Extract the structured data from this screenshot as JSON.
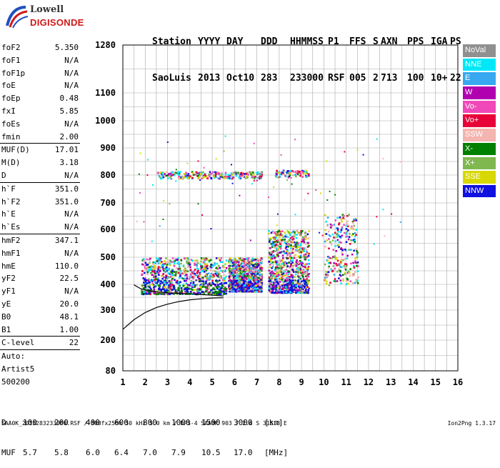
{
  "logo": {
    "line1": "Lowell",
    "line2": "DIGISONDE"
  },
  "header": {
    "row1": [
      "Station",
      "YYYY",
      "DAY",
      "DDD",
      "HHMMSS",
      "P1",
      "FFS",
      "S",
      "AXN",
      "PPS",
      "IGA",
      "PS"
    ],
    "row2": [
      "SaoLuis",
      "2013",
      "Oct10",
      "283",
      "233000",
      "RSF",
      "005",
      "2",
      "713",
      "100",
      "10+",
      "22"
    ]
  },
  "parameters": {
    "group1": [
      {
        "name": "foF2",
        "value": "5.350"
      },
      {
        "name": "foF1",
        "value": "N/A"
      },
      {
        "name": "foF1p",
        "value": "N/A"
      },
      {
        "name": "foE",
        "value": "N/A"
      },
      {
        "name": "foEp",
        "value": "0.48"
      },
      {
        "name": "fxI",
        "value": "5.85"
      },
      {
        "name": "foEs",
        "value": "N/A"
      },
      {
        "name": "fmin",
        "value": "2.00"
      }
    ],
    "group2": [
      {
        "name": "MUF(D)",
        "value": "17.01"
      },
      {
        "name": "M(D)",
        "value": "3.18"
      },
      {
        "name": "D",
        "value": "N/A"
      }
    ],
    "group3": [
      {
        "name": "h`F",
        "value": "351.0"
      },
      {
        "name": "h`F2",
        "value": "351.0"
      },
      {
        "name": "h`E",
        "value": "N/A"
      },
      {
        "name": "h`Es",
        "value": "N/A"
      }
    ],
    "group4": [
      {
        "name": "hmF2",
        "value": "347.1"
      },
      {
        "name": "hmF1",
        "value": "N/A"
      },
      {
        "name": "hmE",
        "value": "110.0"
      },
      {
        "name": "yF2",
        "value": "22.5"
      },
      {
        "name": "yF1",
        "value": "N/A"
      },
      {
        "name": "yE",
        "value": "20.0"
      },
      {
        "name": "B0",
        "value": "48.1"
      },
      {
        "name": "B1",
        "value": "1.00"
      }
    ],
    "clevel": {
      "name": "C-level",
      "value": "22"
    },
    "auto": [
      "Auto:",
      "Artist5",
      "500200"
    ]
  },
  "legend": [
    {
      "label": "NoVal",
      "color": "#909090"
    },
    {
      "label": "NNE",
      "color": "#00e8f8"
    },
    {
      "label": "E",
      "color": "#38a8f0"
    },
    {
      "label": "W",
      "color": "#b000b0"
    },
    {
      "label": "Vo-",
      "color": "#f048b8"
    },
    {
      "label": "Vo+",
      "color": "#e80038"
    },
    {
      "label": "SSW",
      "color": "#f4b4b0"
    },
    {
      "label": "X-",
      "color": "#008000"
    },
    {
      "label": "X+",
      "color": "#80b850"
    },
    {
      "label": "SSE",
      "color": "#d8d800"
    },
    {
      "label": "NNW",
      "color": "#1010e0"
    }
  ],
  "footer": {
    "d_label": "D",
    "d_values": [
      "100",
      "200",
      "400",
      "600",
      "800",
      "1000",
      "1500",
      "3000",
      "[km]"
    ],
    "muf_label": "MUF",
    "muf_values": [
      "5.7",
      "5.8",
      "6.0",
      "6.4",
      "7.0",
      "7.9",
      "10.5",
      "17.0",
      "[MHz]"
    ],
    "file_line": "SAA0K_2013283233000.RSF / 300fx256h 50 kHz 5.0 km / DPS-4 SAA0K 903 / 2.6 S 315.8 E",
    "version": "Ion2Png 1.3.17"
  },
  "chart_data": {
    "type": "scatter",
    "title": "",
    "xlabel": "",
    "ylabel": "",
    "x_ticks": [
      1,
      2,
      3,
      4,
      5,
      6,
      7,
      8,
      9,
      10,
      11,
      12,
      13,
      14,
      15,
      16
    ],
    "xlim": [
      1,
      16
    ],
    "y_ticks": [
      80,
      200,
      300,
      400,
      500,
      600,
      700,
      800,
      900,
      1000,
      1100,
      1280
    ],
    "y_tick_labels": [
      "80",
      "200",
      "300",
      "400",
      "500",
      "600",
      "700",
      "800",
      "900",
      "1000",
      "1100",
      "1280"
    ],
    "ylim": [
      80,
      1280
    ],
    "grid": true,
    "echo_regions": [
      {
        "name": "F2 trace 2-5.5 MHz",
        "x": [
          1.8,
          5.6
        ],
        "y": [
          365,
          500
        ],
        "density": "high"
      },
      {
        "name": "F2 trace 5.7-7.2 MHz",
        "x": [
          5.7,
          7.2
        ],
        "y": [
          375,
          500
        ],
        "density": "high"
      },
      {
        "name": "F2 trace 7.5-9.3 MHz",
        "x": [
          7.5,
          9.3
        ],
        "y": [
          370,
          600
        ],
        "density": "high"
      },
      {
        "name": "F2 trace 10-11.5 MHz",
        "x": [
          10.0,
          11.5
        ],
        "y": [
          400,
          660
        ],
        "density": "medium"
      },
      {
        "name": "multiple echo band",
        "x": [
          2.5,
          7.2
        ],
        "y": [
          790,
          815
        ],
        "density": "medium"
      },
      {
        "name": "multiple echo band 8-9",
        "x": [
          7.8,
          9.3
        ],
        "y": [
          795,
          820
        ],
        "density": "low"
      }
    ],
    "ordinary_trace": {
      "label": "O-trace",
      "points": [
        [
          1.0,
          236
        ],
        [
          1.5,
          268
        ],
        [
          2.0,
          292
        ],
        [
          2.5,
          310
        ],
        [
          3.0,
          323
        ],
        [
          3.5,
          333
        ],
        [
          4.0,
          340
        ],
        [
          4.5,
          344
        ],
        [
          5.0,
          347
        ],
        [
          5.5,
          348
        ]
      ]
    },
    "hook_trace": {
      "points": [
        [
          1.5,
          398
        ],
        [
          1.8,
          383
        ],
        [
          2.3,
          373
        ],
        [
          3.0,
          367
        ],
        [
          4.0,
          363
        ],
        [
          5.0,
          358
        ],
        [
          5.5,
          355
        ]
      ]
    }
  }
}
